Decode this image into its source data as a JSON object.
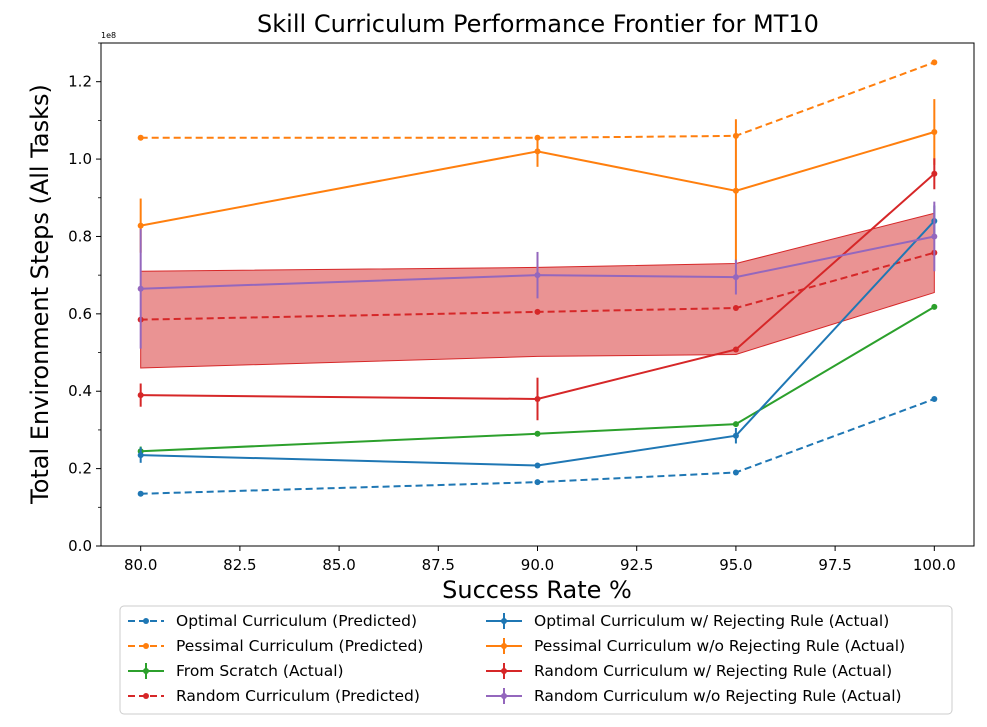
{
  "chart_data": {
    "type": "line",
    "title": "Skill Curriculum Performance Frontier for MT10",
    "xlabel": "Success Rate %",
    "ylabel": "Total Environment Steps (All Tasks)",
    "y_exponent_label": "1e8",
    "x": [
      80,
      90,
      95,
      100
    ],
    "xlim": [
      79,
      101
    ],
    "ylim": [
      0,
      1.3
    ],
    "x_ticks": [
      "80.0",
      "82.5",
      "85.0",
      "87.5",
      "90.0",
      "92.5",
      "95.0",
      "97.5",
      "100.0"
    ],
    "y_ticks": [
      "0.0",
      "0.2",
      "0.4",
      "0.6",
      "0.8",
      "1.0",
      "1.2"
    ],
    "grid": false,
    "legend_position": "below plot",
    "band": {
      "series": "Random Curriculum (Predicted)",
      "color": "#d62728",
      "lower": [
        0.46,
        0.49,
        0.495,
        0.655
      ],
      "upper": [
        0.71,
        0.72,
        0.73,
        0.86
      ]
    },
    "series": [
      {
        "name": "Optimal Curriculum (Predicted)",
        "color": "#1f77b4",
        "style": "dashed",
        "values": [
          0.135,
          0.165,
          0.19,
          0.38
        ]
      },
      {
        "name": "Pessimal Curriculum (Predicted)",
        "color": "#ff7f0e",
        "style": "dashed",
        "values": [
          1.055,
          1.055,
          1.06,
          1.25
        ]
      },
      {
        "name": "From Scratch (Actual)",
        "color": "#2ca02c",
        "style": "solid",
        "values": [
          0.245,
          0.29,
          0.315,
          0.618
        ],
        "errors": [
          0.012,
          0.005,
          0.005,
          0.005
        ]
      },
      {
        "name": "Random Curriculum (Predicted)",
        "color": "#d62728",
        "style": "dashed",
        "values": [
          0.585,
          0.605,
          0.615,
          0.758
        ]
      },
      {
        "name": "Optimal Curriculum w/ Rejecting Rule (Actual)",
        "color": "#1f77b4",
        "style": "solid",
        "values": [
          0.235,
          0.208,
          0.285,
          0.84
        ],
        "errors": [
          0.02,
          0.005,
          0.02,
          0.04
        ]
      },
      {
        "name": "Pessimal Curriculum w/o Rejecting Rule (Actual)",
        "color": "#ff7f0e",
        "style": "solid",
        "values": [
          0.828,
          1.02,
          0.918,
          1.07
        ],
        "errors": [
          0.07,
          0.04,
          0.185,
          0.085
        ]
      },
      {
        "name": "Random Curriculum w/ Rejecting Rule (Actual)",
        "color": "#d62728",
        "style": "solid",
        "values": [
          0.39,
          0.38,
          0.508,
          0.962
        ],
        "errors": [
          0.03,
          0.055,
          0.005,
          0.04
        ]
      },
      {
        "name": "Random Curriculum w/o Rejecting Rule (Actual)",
        "color": "#9467bd",
        "style": "solid",
        "values": [
          0.665,
          0.7,
          0.695,
          0.8
        ],
        "errors": [
          0.155,
          0.06,
          0.045,
          0.09
        ]
      }
    ]
  }
}
